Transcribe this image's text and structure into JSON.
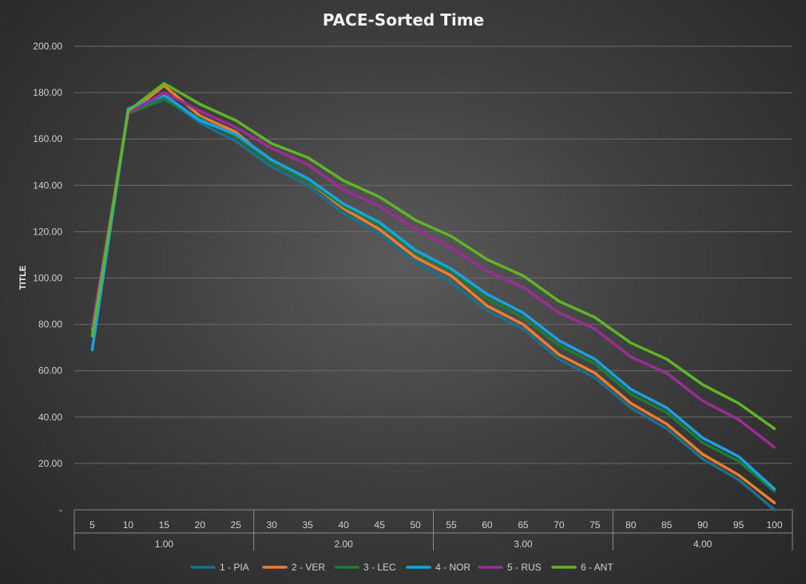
{
  "chart_data": {
    "type": "line",
    "title": "PACE-Sorted Time",
    "ylabel": "TITLE",
    "xlabel": "",
    "ylim": [
      0,
      200
    ],
    "y_ticks": [
      "-",
      "20.00",
      "40.00",
      "60.00",
      "80.00",
      "100.00",
      "120.00",
      "140.00",
      "160.00",
      "180.00",
      "200.00"
    ],
    "grid": true,
    "legend_position": "bottom",
    "x": [
      5,
      10,
      15,
      20,
      25,
      30,
      35,
      40,
      45,
      50,
      55,
      60,
      65,
      70,
      75,
      80,
      85,
      90,
      95,
      100
    ],
    "x_groups": [
      {
        "label": "1.00",
        "from": 5,
        "to": 25
      },
      {
        "label": "2.00",
        "from": 30,
        "to": 50
      },
      {
        "label": "3.00",
        "from": 55,
        "to": 75
      },
      {
        "label": "4.00",
        "from": 80,
        "to": 100
      }
    ],
    "series": [
      {
        "name": "1 - PIA",
        "color": "#1f6f8b",
        "values": [
          70,
          171,
          178,
          167,
          159,
          148,
          140,
          128,
          119,
          107,
          98,
          86,
          78,
          65,
          57,
          44,
          35,
          22,
          13,
          0
        ]
      },
      {
        "name": "2 - VER",
        "color": "#ed7d31",
        "values": [
          78,
          171,
          183,
          170,
          163,
          150,
          142,
          130,
          121,
          109,
          101,
          88,
          80,
          67,
          59,
          46,
          37,
          24,
          15,
          3
        ]
      },
      {
        "name": "3 - LEC",
        "color": "#1e7b34",
        "values": [
          76,
          171,
          177,
          169,
          161,
          150,
          142,
          131,
          123,
          111,
          103,
          91,
          83,
          71,
          63,
          50,
          42,
          29,
          21,
          8
        ]
      },
      {
        "name": "4 - NOR",
        "color": "#1ba1e2",
        "values": [
          69,
          173,
          179,
          168,
          162,
          151,
          143,
          132,
          124,
          112,
          104,
          93,
          85,
          73,
          65,
          52,
          44,
          31,
          23,
          9
        ]
      },
      {
        "name": "5 - RUS",
        "color": "#9a2e95",
        "values": [
          79,
          171,
          180,
          172,
          165,
          156,
          149,
          138,
          131,
          121,
          113,
          103,
          96,
          85,
          78,
          66,
          59,
          47,
          39,
          27
        ]
      },
      {
        "name": "6 - ANT",
        "color": "#5fb526",
        "values": [
          75,
          172,
          184,
          175,
          168,
          158,
          152,
          142,
          135,
          125,
          118,
          108,
          101,
          90,
          83,
          72,
          65,
          54,
          46,
          35
        ]
      }
    ]
  }
}
